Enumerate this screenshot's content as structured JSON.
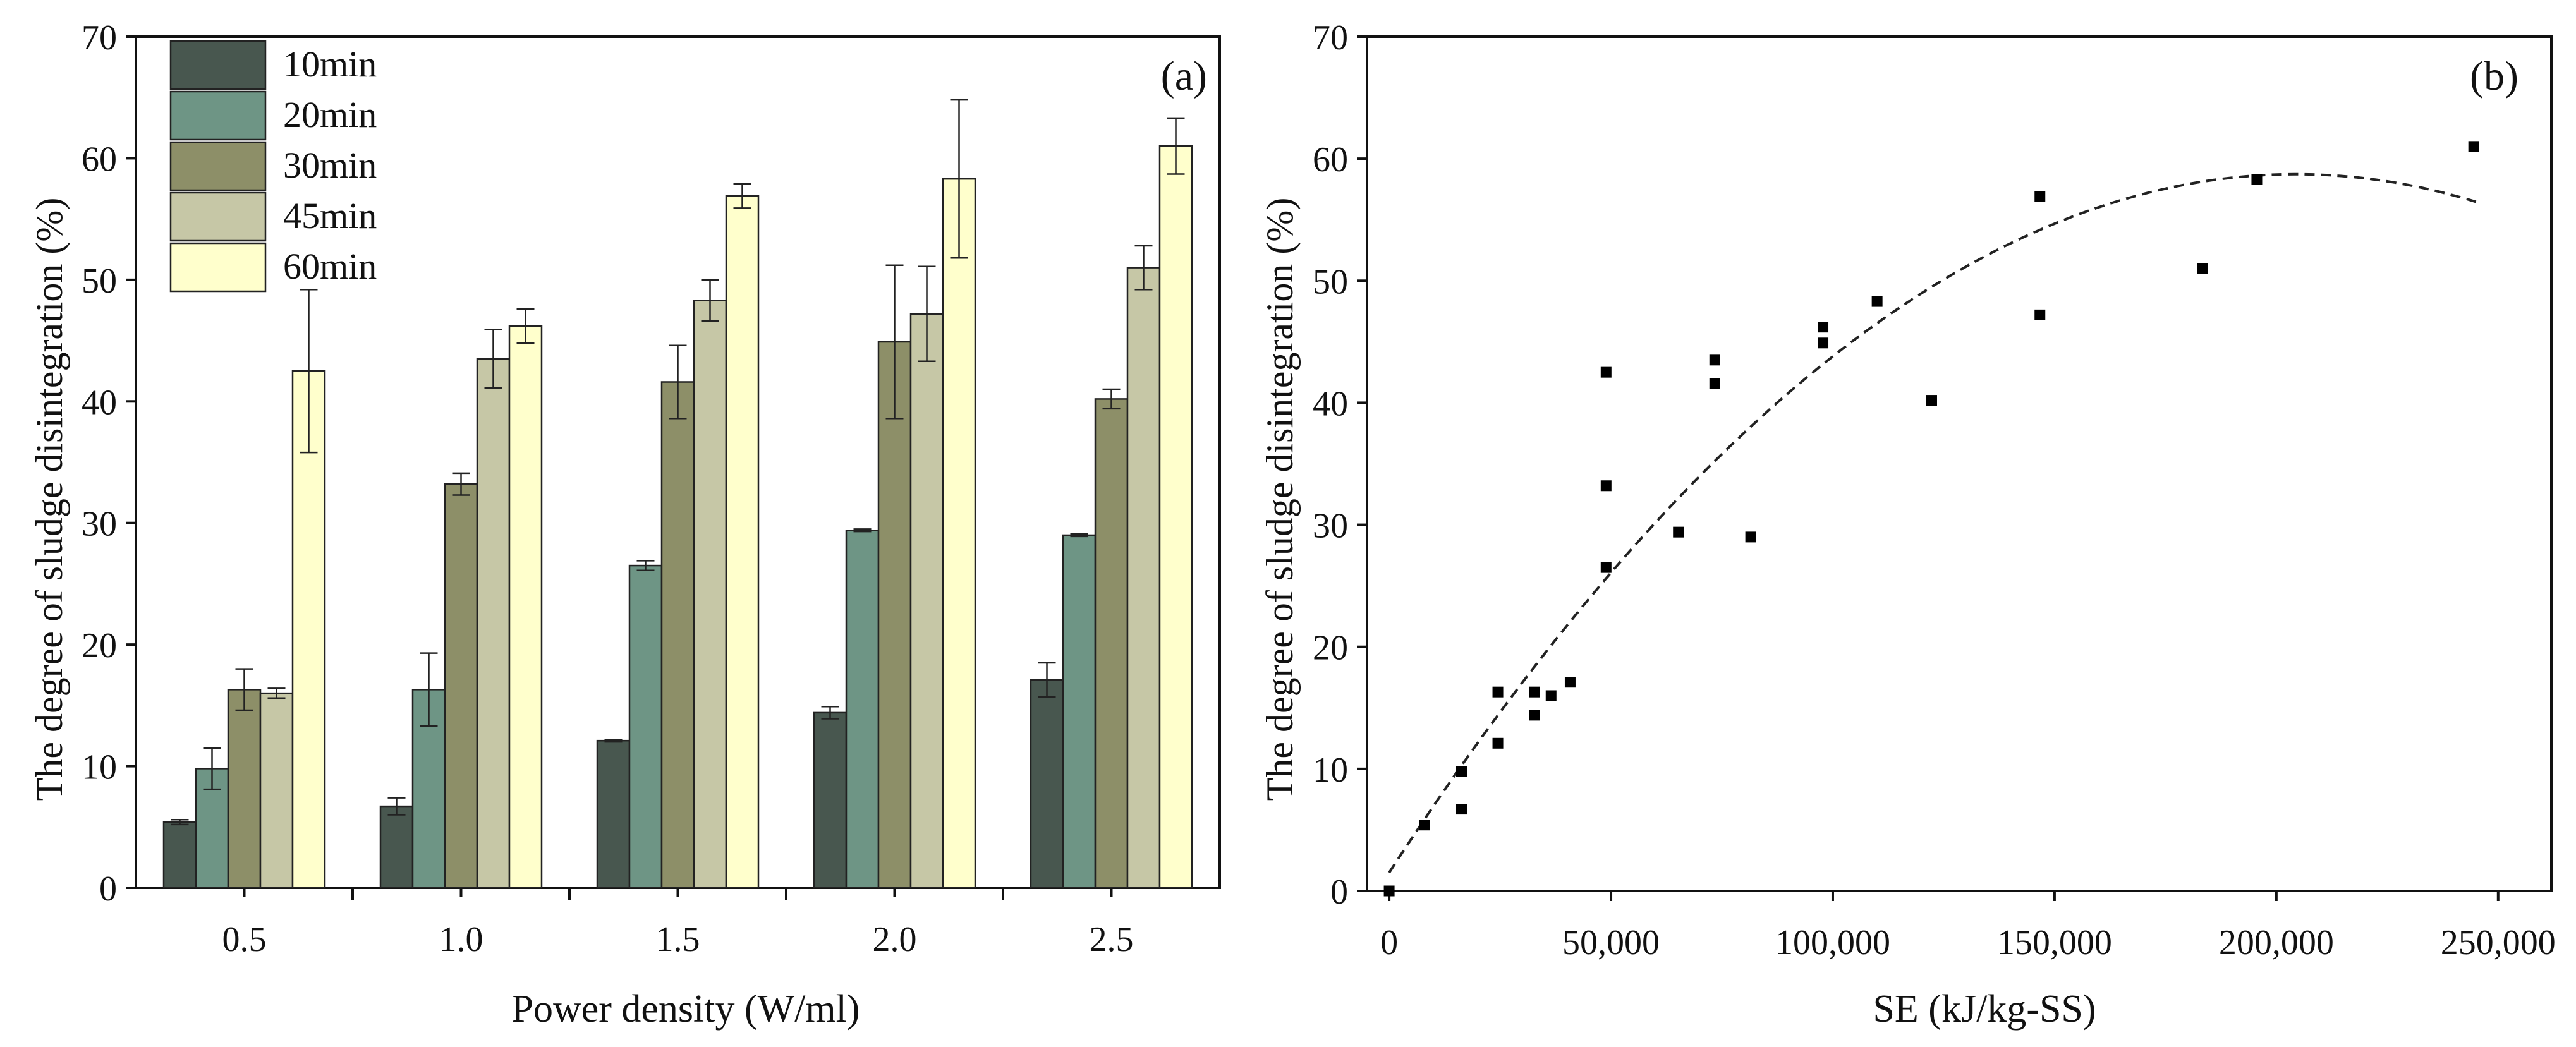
{
  "chart_data": [
    {
      "type": "bar",
      "panel_label": "(a)",
      "title": "",
      "xlabel": "Power density (W/ml)",
      "ylabel": "The degree of sludge disintegration (%)",
      "ylim": [
        0,
        70
      ],
      "yticks": [
        0,
        10,
        20,
        30,
        40,
        50,
        60,
        70
      ],
      "categories": [
        "0.5",
        "1.0",
        "1.5",
        "2.0",
        "2.5"
      ],
      "legend_position": "top-left",
      "series": [
        {
          "name": "10min",
          "color": "#48574f",
          "values": [
            5.4,
            6.7,
            12.1,
            14.4,
            17.1
          ],
          "errors": [
            0.2,
            0.7,
            0.1,
            0.5,
            1.4
          ]
        },
        {
          "name": "20min",
          "color": "#6e9585",
          "values": [
            9.8,
            16.3,
            26.5,
            29.4,
            29.0
          ],
          "errors": [
            1.7,
            3.0,
            0.4,
            0.1,
            0.1
          ]
        },
        {
          "name": "30min",
          "color": "#8d8f68",
          "values": [
            16.3,
            33.2,
            41.6,
            44.9,
            40.2
          ],
          "errors": [
            1.7,
            0.9,
            3.0,
            6.3,
            0.8
          ]
        },
        {
          "name": "45min",
          "color": "#c6c7a6",
          "values": [
            16.0,
            43.5,
            48.3,
            47.2,
            51.0
          ],
          "errors": [
            0.4,
            2.4,
            1.7,
            3.9,
            1.8
          ]
        },
        {
          "name": "60min",
          "color": "#ffffcc",
          "values": [
            42.5,
            46.2,
            56.9,
            58.3,
            61.0
          ],
          "errors": [
            6.7,
            1.4,
            1.0,
            6.5,
            2.3
          ]
        }
      ]
    },
    {
      "type": "scatter",
      "panel_label": "(b)",
      "title": "",
      "xlabel": "SE (kJ/kg-SS)",
      "ylabel": "The degree of sludge disintegration (%)",
      "xlim": [
        -5000,
        262000
      ],
      "ylim": [
        0,
        70
      ],
      "xticks": [
        0,
        50000,
        100000,
        150000,
        200000,
        250000
      ],
      "xtick_labels": [
        "0",
        "50,000",
        "100,000",
        "150,000",
        "200,000",
        "250,000"
      ],
      "yticks": [
        0,
        10,
        20,
        30,
        40,
        50,
        60,
        70
      ],
      "points": [
        {
          "x": 0,
          "y": 0
        },
        {
          "x": 8000,
          "y": 5.4
        },
        {
          "x": 16300,
          "y": 6.7
        },
        {
          "x": 16300,
          "y": 9.8
        },
        {
          "x": 24500,
          "y": 12.1
        },
        {
          "x": 24500,
          "y": 16.3
        },
        {
          "x": 32700,
          "y": 14.4
        },
        {
          "x": 32700,
          "y": 16.3
        },
        {
          "x": 36500,
          "y": 16.0
        },
        {
          "x": 40800,
          "y": 17.1
        },
        {
          "x": 48900,
          "y": 26.5
        },
        {
          "x": 48900,
          "y": 33.2
        },
        {
          "x": 48900,
          "y": 42.5
        },
        {
          "x": 65200,
          "y": 29.4
        },
        {
          "x": 73400,
          "y": 41.6
        },
        {
          "x": 73400,
          "y": 43.5
        },
        {
          "x": 81500,
          "y": 29.0
        },
        {
          "x": 97800,
          "y": 44.9
        },
        {
          "x": 97800,
          "y": 46.2
        },
        {
          "x": 110000,
          "y": 48.3
        },
        {
          "x": 122300,
          "y": 40.2
        },
        {
          "x": 146700,
          "y": 47.2
        },
        {
          "x": 146700,
          "y": 56.9
        },
        {
          "x": 183400,
          "y": 51.0
        },
        {
          "x": 195600,
          "y": 58.3
        },
        {
          "x": 244500,
          "y": 61.0
        }
      ],
      "fit_curve": {
        "style": "dashed",
        "x_range": [
          0,
          245000
        ],
        "coefficients": [
          1.5,
          0.00056,
          -1.37e-09
        ]
      }
    }
  ]
}
